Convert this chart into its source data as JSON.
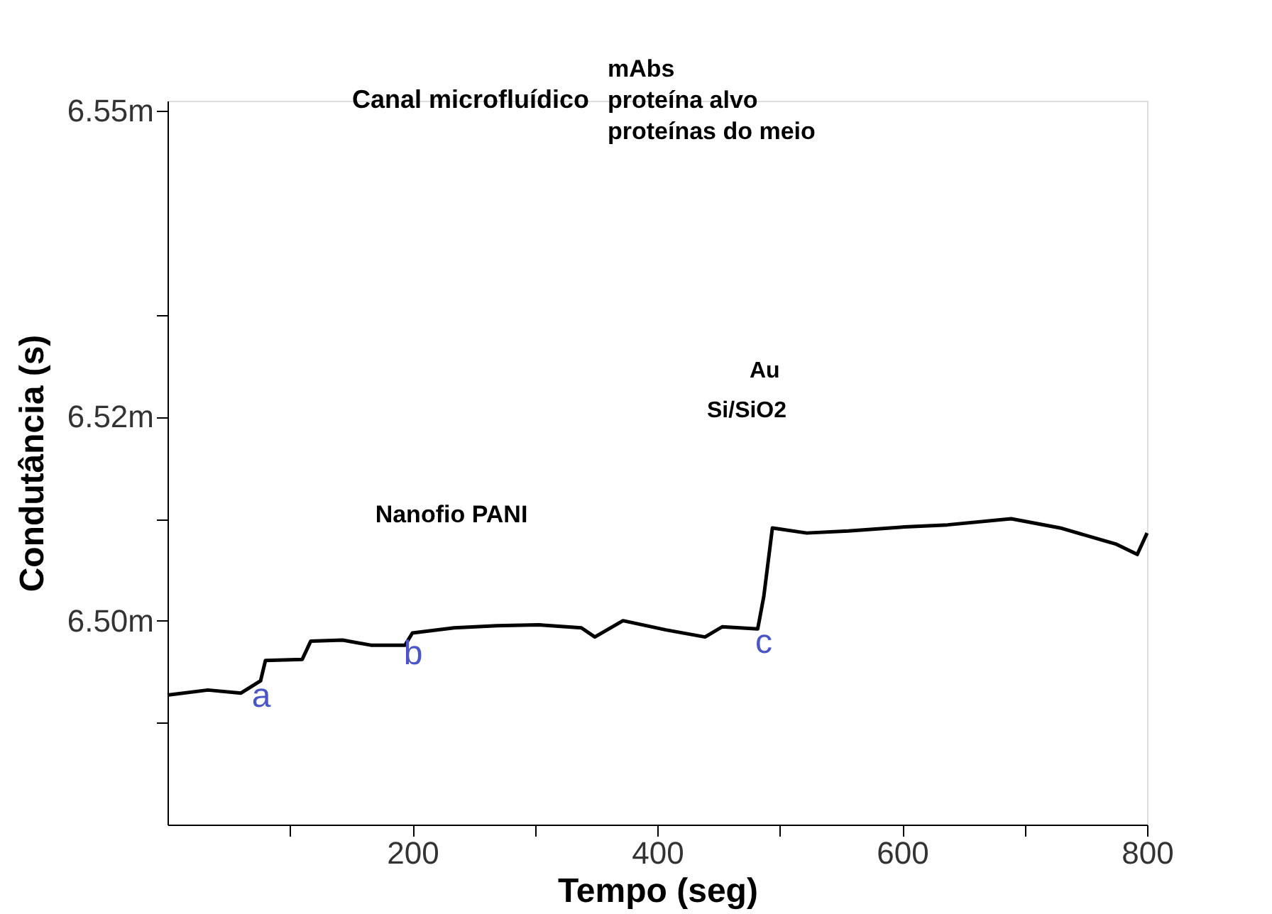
{
  "chart_data": {
    "type": "line",
    "xlabel": "Tempo (seg)",
    "ylabel": "Condutância (s)",
    "x": [
      0,
      33,
      60,
      76,
      80,
      110,
      117,
      143,
      166,
      194,
      200,
      234,
      269,
      303,
      338,
      349,
      372,
      407,
      439,
      453,
      482,
      487,
      494,
      522,
      556,
      602,
      637,
      689,
      729,
      775,
      792,
      800
    ],
    "series": [
      {
        "color": "#000000",
        "values": [
          6.4927,
          6.4932,
          6.4929,
          6.4941,
          6.4961,
          6.4962,
          6.498,
          6.4981,
          6.4976,
          6.4976,
          6.4988,
          6.4993,
          6.4995,
          6.4996,
          6.4993,
          6.4984,
          6.5,
          6.4991,
          6.4984,
          6.4994,
          6.4992,
          6.5024,
          6.5091,
          6.5086,
          6.5088,
          6.5092,
          6.5094,
          6.51,
          6.5091,
          6.5075,
          6.5065,
          6.5086
        ]
      }
    ],
    "xlim": [
      0,
      800
    ],
    "xticks": [
      {
        "value": 100,
        "label": null
      },
      200,
      {
        "value": 300,
        "label": null
      },
      400,
      {
        "value": 500,
        "label": null
      },
      600,
      {
        "value": 700,
        "label": null
      },
      800
    ],
    "ylim": [
      6.48,
      6.551
    ],
    "yticks": [
      {
        "value": 6.49,
        "label": null
      },
      {
        "value": 6.5,
        "label": "6.50m"
      },
      {
        "value": 6.51,
        "label": null
      },
      {
        "value": 6.52,
        "label": "6.52m"
      },
      {
        "value": 6.53,
        "label": null
      },
      {
        "value": 6.55,
        "label": "6.55m"
      }
    ],
    "grid": false,
    "marker": "none",
    "line_style": "solid",
    "annotations": [
      "a",
      "b",
      "c",
      "Canal microfluídico",
      "mAbs",
      "proteína alvo",
      "proteínas do meio",
      "Au",
      "Si/SiO2",
      "Nanofio PANI"
    ]
  }
}
